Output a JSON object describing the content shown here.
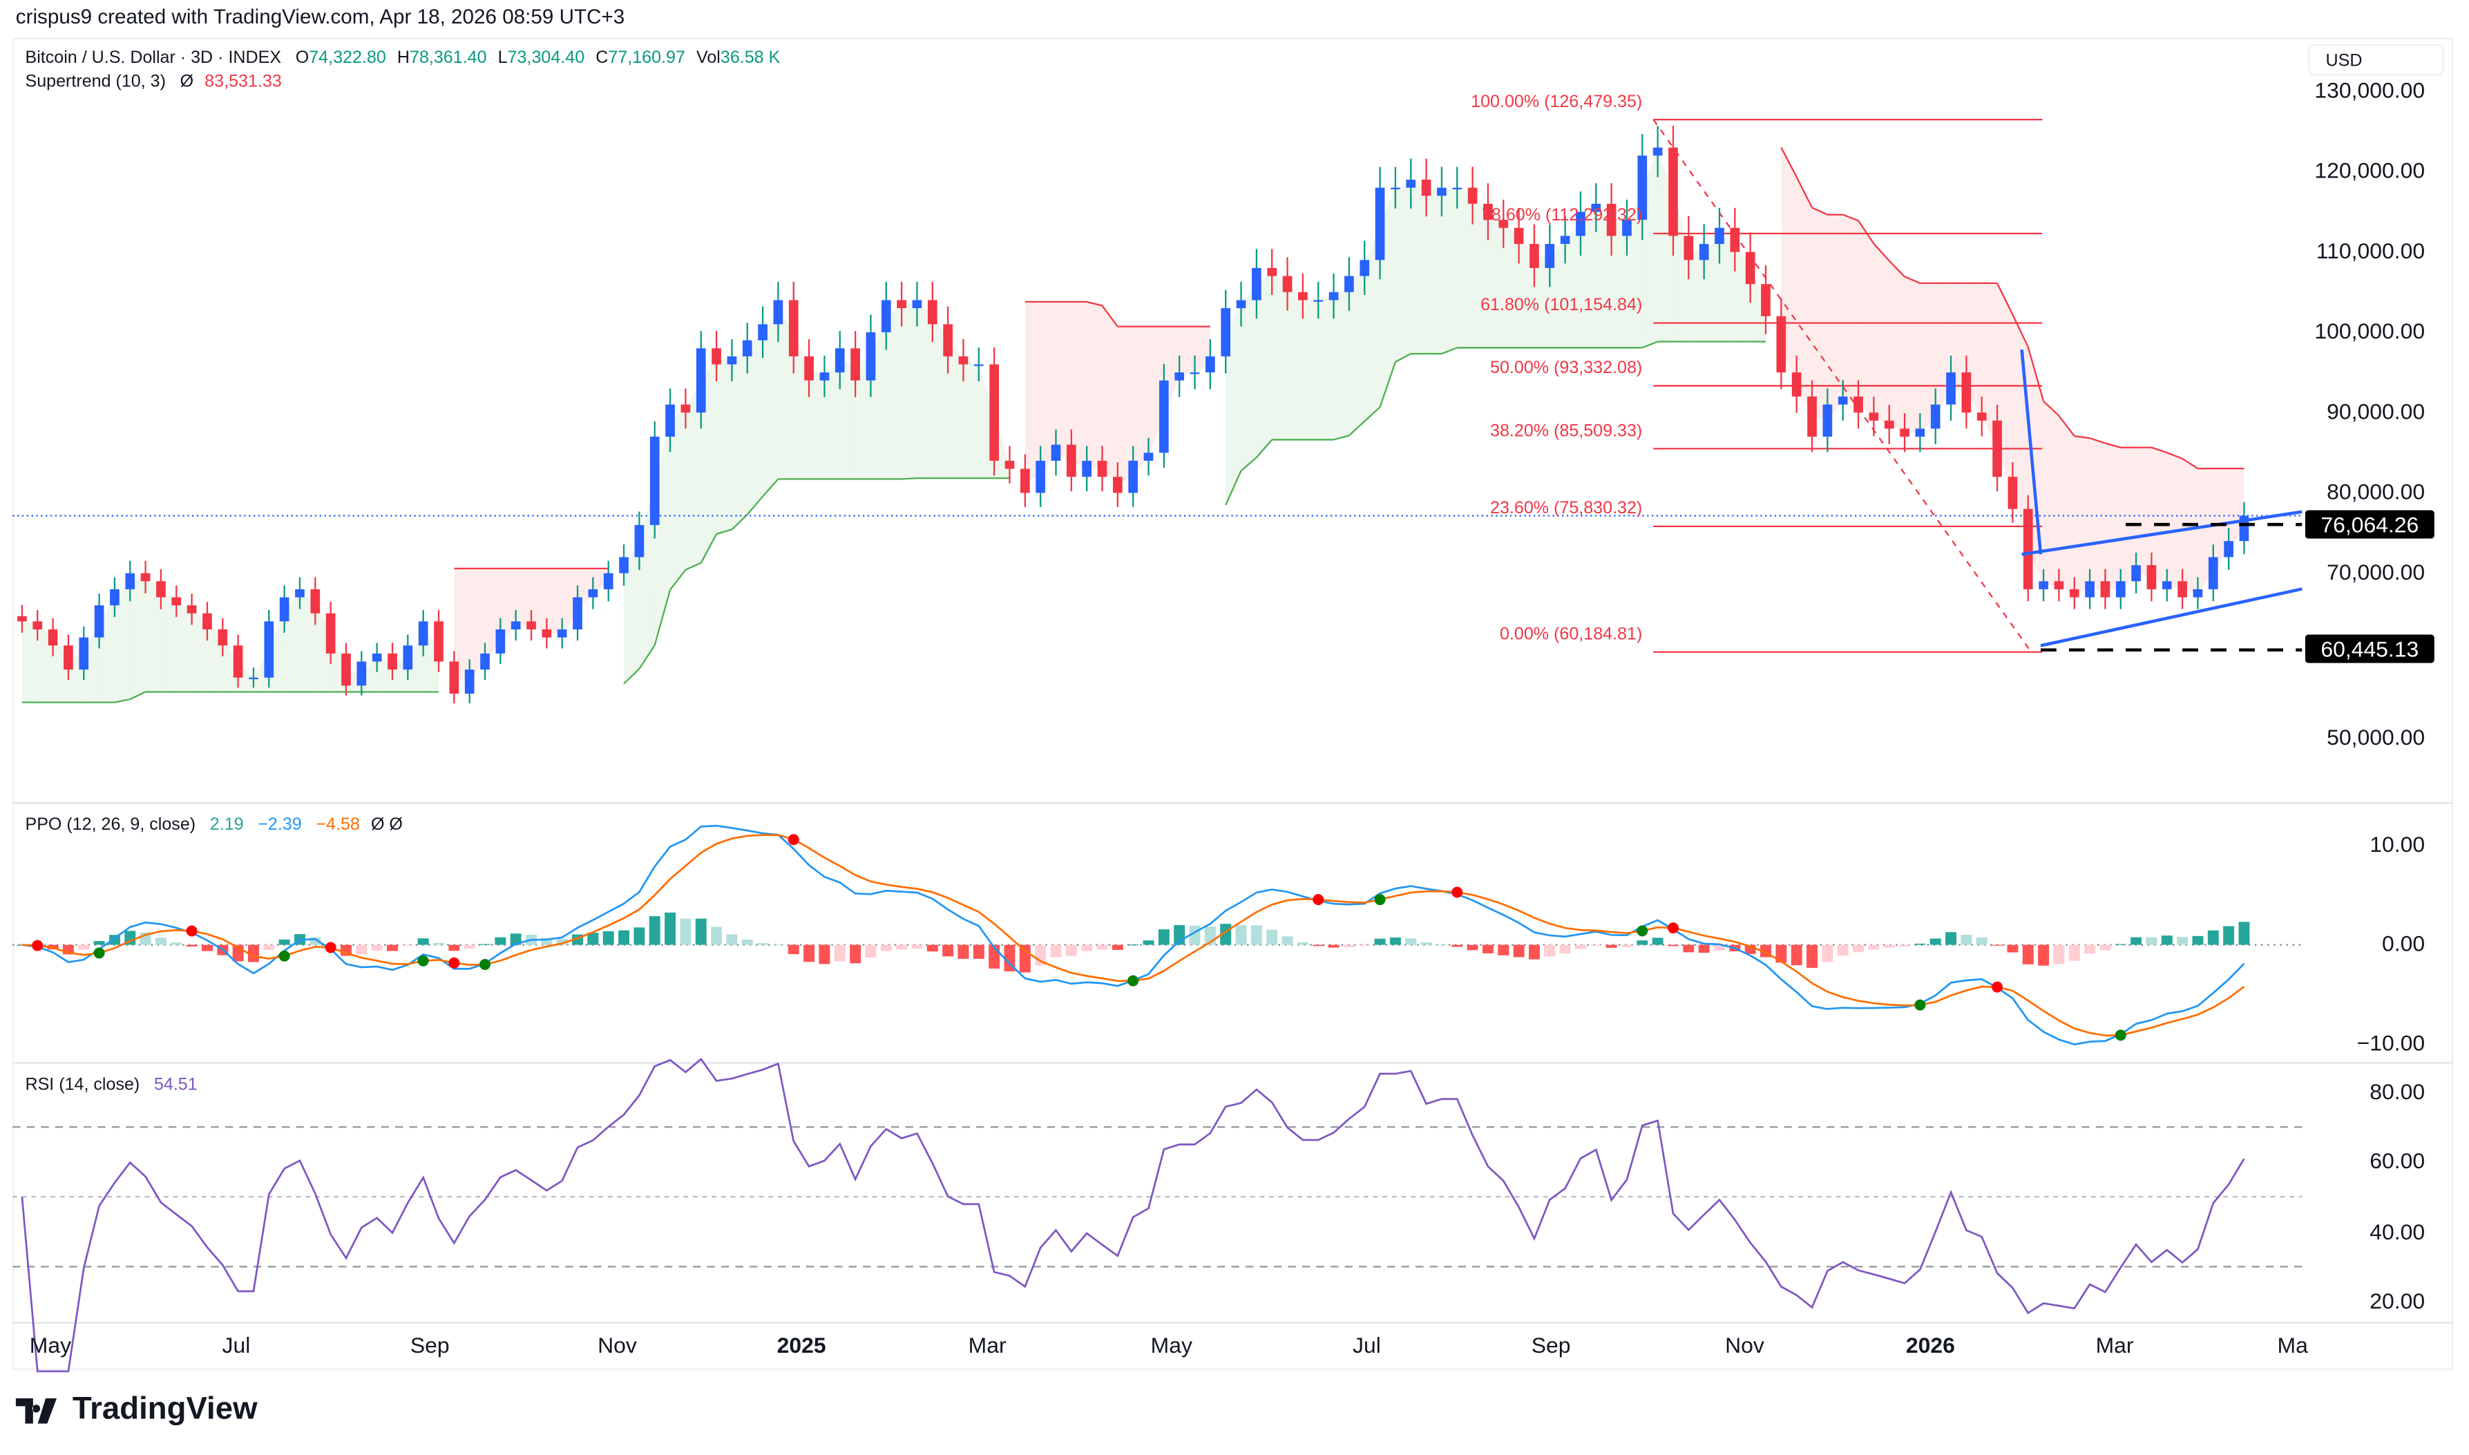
{
  "credit": "crispus9 created with TradingView.com, Apr 18, 2026 08:59 UTC+3",
  "legend": {
    "symbol": "Bitcoin / U.S. Dollar · 3D · INDEX",
    "o_label": "O",
    "o": "74,322.80",
    "h_label": "H",
    "h": "78,361.40",
    "l_label": "L",
    "l": "73,304.40",
    "c_label": "C",
    "c": "77,160.97",
    "vol_label": "Vol",
    "vol": "36.58 K",
    "supertrend": "Supertrend (10, 3)",
    "supertrend_icon": "Ø",
    "supertrend_value": "83,531.33",
    "ppo": "PPO (12, 26, 9, close)",
    "ppo_hist": "2.19",
    "ppo_line": "−2.39",
    "ppo_signal": "−4.58",
    "ppo_icons": "Ø Ø",
    "rsi": "RSI (14, close)",
    "rsi_value": "54.51"
  },
  "currency": "USD",
  "price_axis": [
    "130,000.00",
    "120,000.00",
    "110,000.00",
    "100,000.00",
    "90,000.00",
    "80,000.00",
    "70,000.00",
    "50,000.00"
  ],
  "ppo_axis": [
    "10.00",
    "0.00",
    "−10.00"
  ],
  "rsi_axis": [
    "80.00",
    "60.00",
    "40.00",
    "20.00"
  ],
  "time_axis": [
    "May",
    "Jul",
    "Sep",
    "Nov",
    "2025",
    "Mar",
    "May",
    "Jul",
    "Sep",
    "Nov",
    "2026",
    "Mar",
    "Ma"
  ],
  "price_tags": {
    "upper": "76,064.26",
    "lower": "60,445.13"
  },
  "fib_labels": [
    "100.00% (126,479.35)",
    "78.60% (112,292.32)",
    "61.80% (101,154.84)",
    "50.00% (93,332.08)",
    "38.20% (85,509.33)",
    "23.60% (75,830.32)",
    "0.00% (60,184.81)"
  ],
  "logo": "TradingView",
  "colors": {
    "up_body": "#2962ff",
    "up_wick": "#089981",
    "down": "#f23645",
    "st_up": "#4caf50",
    "st_down": "#f23645",
    "ppo": "#2196f3",
    "signal": "#ff6d00",
    "rsi": "#7e57c2",
    "drawing": "#2962ff"
  },
  "chart_data": {
    "type": "candlestick",
    "title": "Bitcoin / U.S. Dollar · 3D · INDEX",
    "ylim": [
      40000,
      134000
    ],
    "log_scale": false,
    "close": [
      64000,
      63000,
      61000,
      58000,
      62000,
      66000,
      68000,
      70000,
      69000,
      67000,
      66000,
      65000,
      63000,
      61000,
      57000,
      57000,
      64000,
      67000,
      68000,
      65000,
      60000,
      56000,
      59000,
      60000,
      58000,
      61000,
      64000,
      59000,
      55000,
      58000,
      60000,
      63000,
      64000,
      63000,
      62000,
      63000,
      67000,
      68000,
      70000,
      72000,
      76000,
      87000,
      91000,
      90000,
      98000,
      96000,
      97000,
      99000,
      101000,
      104000,
      97000,
      94000,
      95000,
      98000,
      94000,
      100000,
      104000,
      103000,
      104000,
      101000,
      97000,
      96000,
      96000,
      84000,
      83000,
      80000,
      84000,
      86000,
      82000,
      84000,
      82000,
      80000,
      84000,
      85000,
      94000,
      95000,
      95000,
      97000,
      103000,
      104000,
      108000,
      107000,
      105000,
      104000,
      104000,
      105000,
      107000,
      109000,
      118000,
      118000,
      119000,
      117000,
      118000,
      118000,
      116000,
      114000,
      113000,
      111000,
      108000,
      111000,
      112000,
      115000,
      116000,
      112000,
      114000,
      122000,
      123000,
      112000,
      109000,
      111000,
      113000,
      110000,
      106000,
      102000,
      95000,
      92000,
      87000,
      91000,
      92000,
      90000,
      89000,
      88000,
      87000,
      88000,
      91000,
      95000,
      90000,
      89000,
      82000,
      78000,
      68000,
      69000,
      68000,
      67000,
      69000,
      67000,
      69000,
      71000,
      68000,
      69000,
      67000,
      68000,
      72000,
      74000,
      77160.97
    ],
    "current_price": 77160.97,
    "fibonacci": {
      "high": 126479.35,
      "low": 60184.81,
      "levels": [
        1.0,
        0.786,
        0.618,
        0.5,
        0.382,
        0.236,
        0.0
      ]
    },
    "horizontal_levels": [
      76064.26,
      60445.13
    ],
    "supertrend": {
      "period": 10,
      "multiplier": 3
    },
    "ppo": {
      "fast": 12,
      "slow": 26,
      "signal": 9,
      "levels": [
        10,
        0,
        -10
      ]
    },
    "rsi": {
      "period": 14,
      "bands": [
        70,
        50,
        30
      ]
    }
  }
}
